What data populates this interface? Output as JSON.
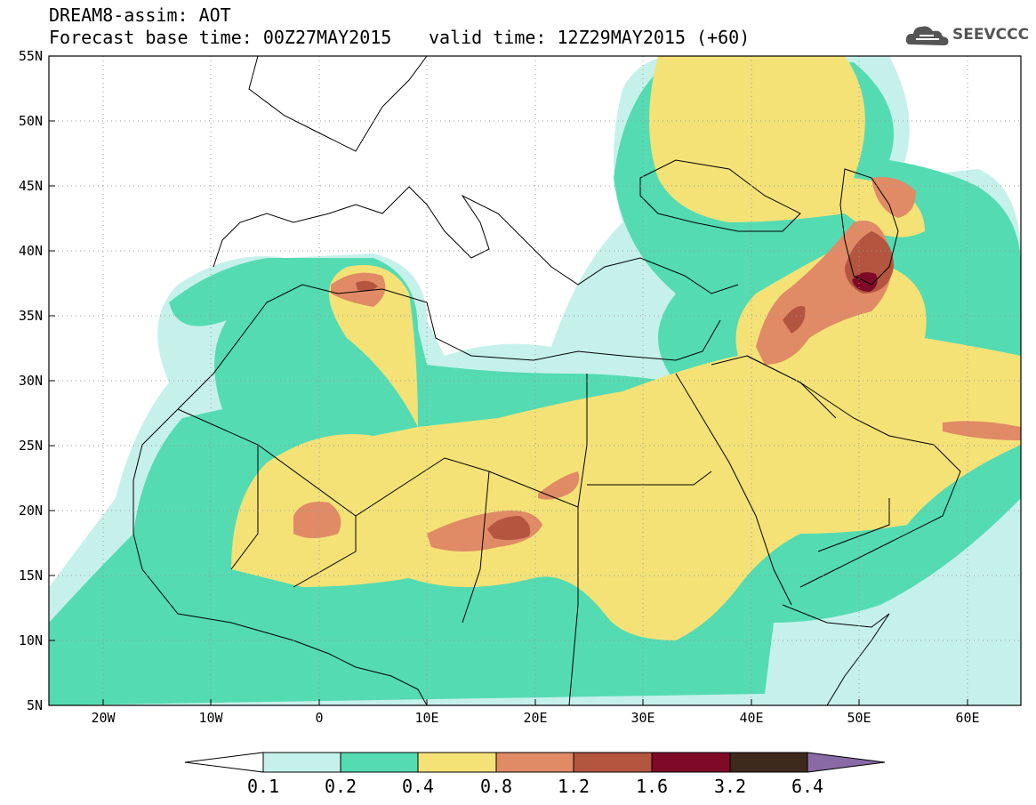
{
  "header": {
    "title_line1": "DREAM8-assim: AOT",
    "title_line2": "Forecast base time: 00Z27MAY2015",
    "valid_time": "valid time: 12Z29MAY2015 (+60)",
    "logo_text": "SEEVCCC"
  },
  "map": {
    "lat_labels": [
      "55N",
      "50N",
      "45N",
      "40N",
      "35N",
      "30N",
      "25N",
      "20N",
      "15N",
      "10N",
      "5N"
    ],
    "lon_labels": [
      "20W",
      "10W",
      "0",
      "10E",
      "20E",
      "30E",
      "40E",
      "50E",
      "60E"
    ],
    "extent": {
      "lon_min": -25,
      "lon_max": 65,
      "lat_min": 5,
      "lat_max": 55
    }
  },
  "colorbar": {
    "labels": [
      "0.1",
      "0.2",
      "0.4",
      "0.8",
      "1.2",
      "1.6",
      "3.2",
      "6.4"
    ],
    "colors": [
      "#ffffff",
      "#c6f1ea",
      "#54dbb2",
      "#f4e277",
      "#e08a66",
      "#b4553f",
      "#7f0a28",
      "#3e2a1c",
      "#8a6aa4"
    ]
  }
}
